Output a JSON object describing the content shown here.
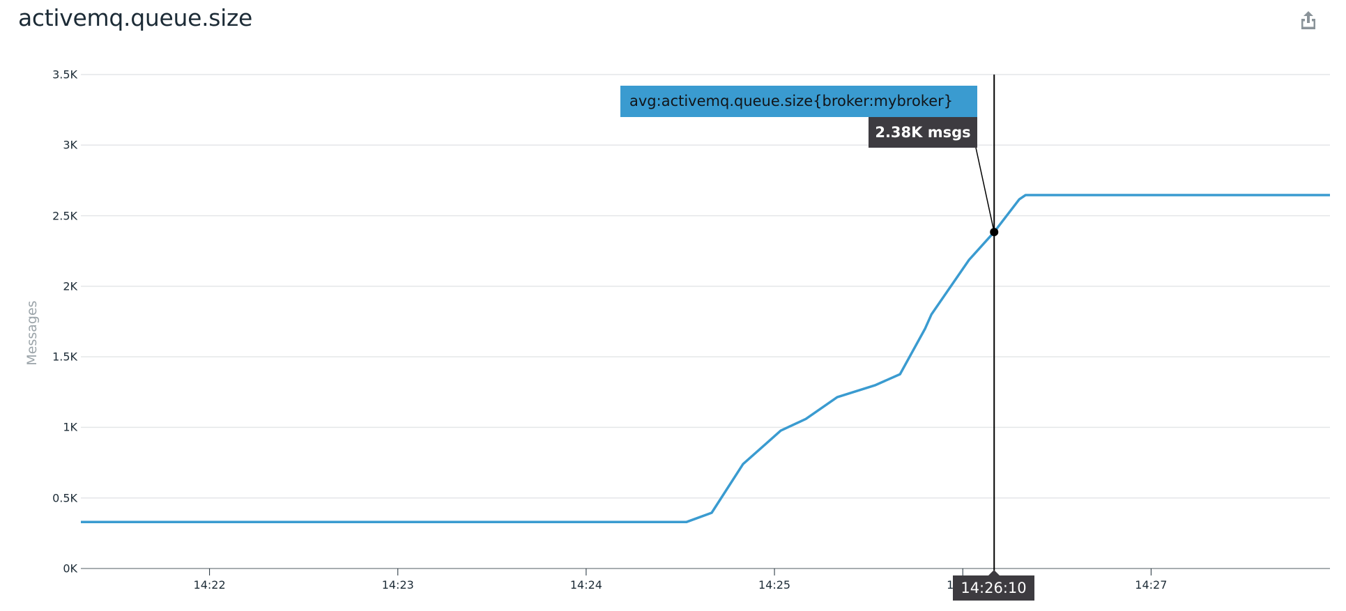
{
  "widget": {
    "title": "activemq.queue.size",
    "share_icon": "share-export-icon"
  },
  "tooltip": {
    "series_name": "avg:activemq.queue.size{broker:mybroker}",
    "value": "2.38K msgs",
    "time": "14:26:10",
    "series_color": "#3a9bd0",
    "label_bg": "#3d3b40"
  },
  "chart_data": {
    "type": "line",
    "title": "activemq.queue.size",
    "xlabel": "",
    "ylabel": "Messages",
    "ylim": [
      0,
      3500
    ],
    "yticks": [
      {
        "value": 0,
        "label": "0K"
      },
      {
        "value": 500,
        "label": "0.5K"
      },
      {
        "value": 1000,
        "label": "1K"
      },
      {
        "value": 1500,
        "label": "1.5K"
      },
      {
        "value": 2000,
        "label": "2K"
      },
      {
        "value": 2500,
        "label": "2.5K"
      },
      {
        "value": 3000,
        "label": "3K"
      },
      {
        "value": 3500,
        "label": "3.5K"
      }
    ],
    "xticks": [
      {
        "seconds": 120,
        "label": "14:22"
      },
      {
        "seconds": 180,
        "label": "14:23"
      },
      {
        "seconds": 240,
        "label": "14:24"
      },
      {
        "seconds": 300,
        "label": "14:25"
      },
      {
        "seconds": 360,
        "label": "14:26"
      },
      {
        "seconds": 420,
        "label": "14:27"
      }
    ],
    "x_time_origin": "14:20:00",
    "xlim_seconds": [
      79,
      477
    ],
    "grid": true,
    "legend": "none",
    "series": [
      {
        "name": "avg:activemq.queue.size{broker:mybroker}",
        "color": "#3a9bd0",
        "unit": "msgs",
        "points": [
          {
            "t": "14:21:19",
            "s": 79,
            "v": 330
          },
          {
            "t": "14:24:32",
            "s": 272,
            "v": 330
          },
          {
            "t": "14:24:40",
            "s": 280,
            "v": 395
          },
          {
            "t": "14:24:50",
            "s": 290,
            "v": 740
          },
          {
            "t": "14:25:02",
            "s": 302,
            "v": 977
          },
          {
            "t": "14:25:10",
            "s": 310,
            "v": 1060
          },
          {
            "t": "14:25:20",
            "s": 320,
            "v": 1214
          },
          {
            "t": "14:25:32",
            "s": 332,
            "v": 1298
          },
          {
            "t": "14:25:40",
            "s": 340,
            "v": 1377
          },
          {
            "t": "14:25:48",
            "s": 348,
            "v": 1700
          },
          {
            "t": "14:25:50",
            "s": 350,
            "v": 1800
          },
          {
            "t": "14:26:02",
            "s": 362,
            "v": 2187
          },
          {
            "t": "14:26:10",
            "s": 370,
            "v": 2384
          },
          {
            "t": "14:26:18",
            "s": 378,
            "v": 2616
          },
          {
            "t": "14:26:20",
            "s": 380,
            "v": 2646
          },
          {
            "t": "14:27:57",
            "s": 477,
            "v": 2646
          }
        ]
      }
    ],
    "hover": {
      "t": "14:26:10",
      "s": 370,
      "v": 2384,
      "label": "2.38K msgs"
    }
  }
}
